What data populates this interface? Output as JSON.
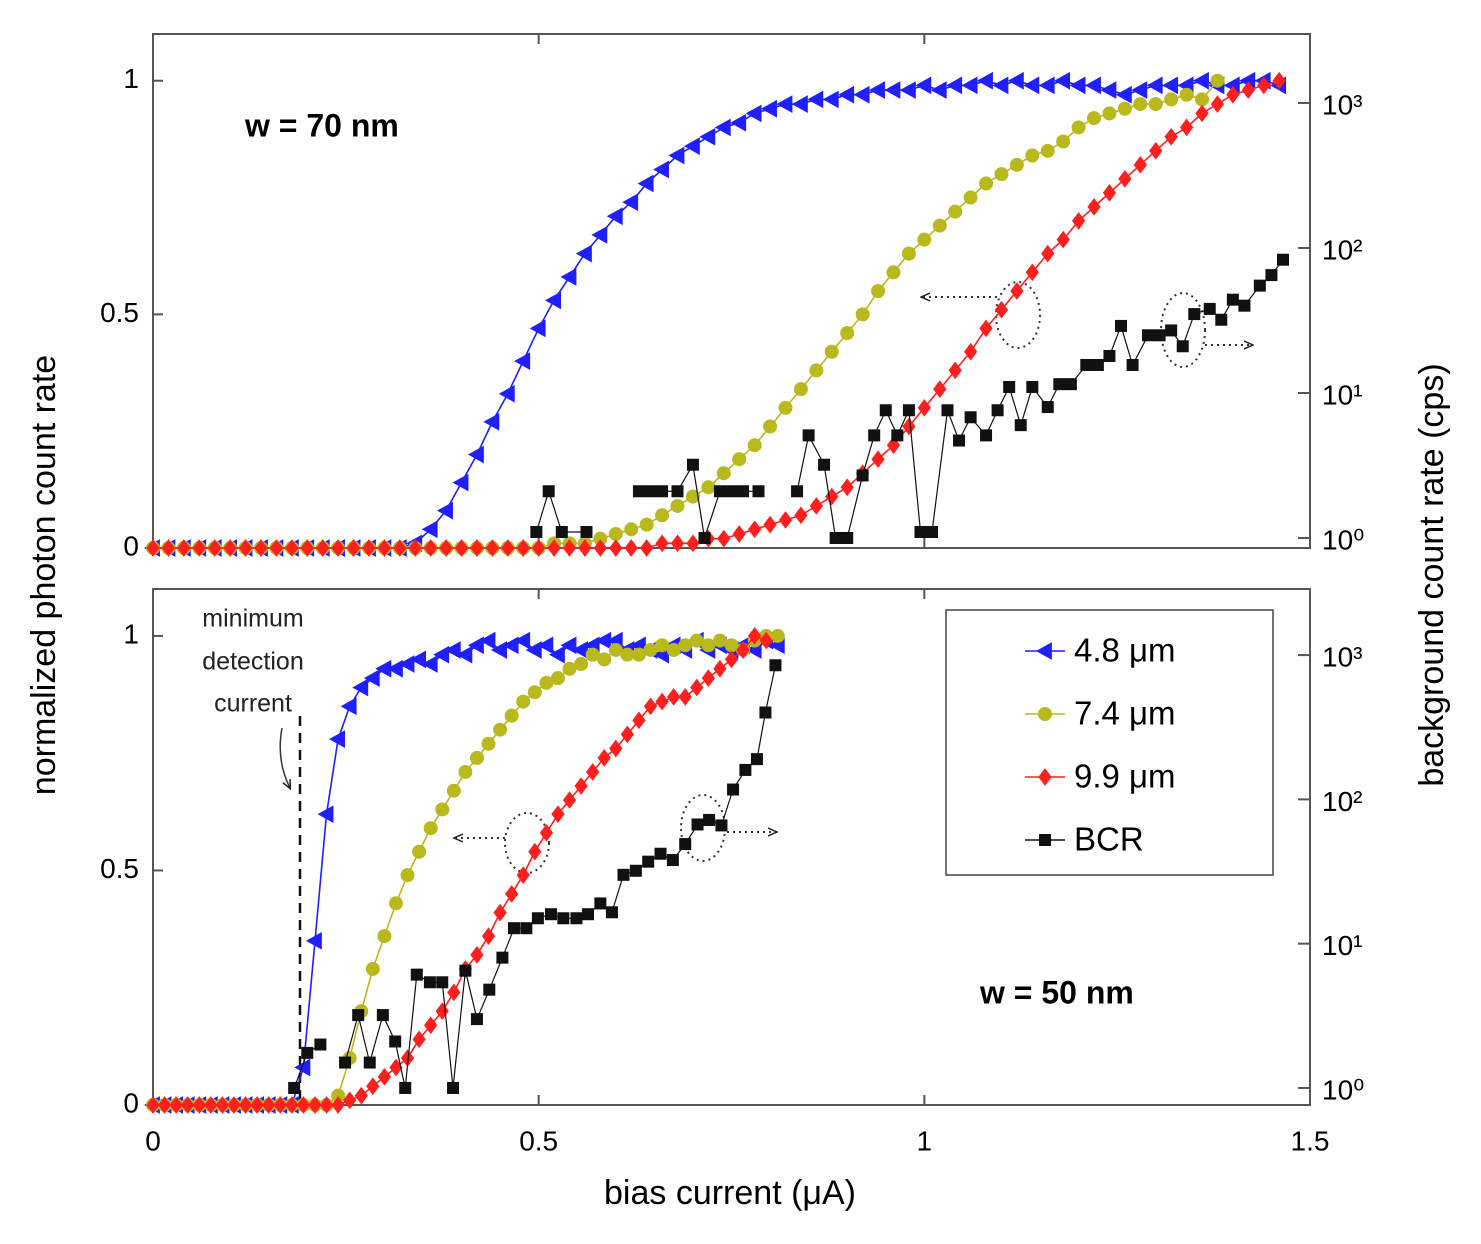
{
  "figure": {
    "xlabel": "bias current (μA)",
    "ylabel": "normalized photon count rate",
    "y2label": "background count rate (cps)"
  },
  "chart_data": [
    {
      "type": "line",
      "xlim": [
        0,
        1.5
      ],
      "xticks": [
        0,
        0.5,
        1,
        1.5
      ],
      "xtick_labels": false,
      "ylim": [
        0,
        1.1
      ],
      "yticks": [
        0,
        0.5,
        1
      ],
      "y2lim": [
        0.853,
        2990
      ],
      "y2log": true,
      "y2ticks": [
        {
          "value": 1,
          "label": "10⁰"
        },
        {
          "value": 10,
          "label": "10¹"
        },
        {
          "value": 100,
          "label": "10²"
        },
        {
          "value": 1000,
          "label": "10³"
        }
      ],
      "annotations": [
        "w = 70 nm"
      ],
      "x": [
        0,
        0.02,
        0.04,
        0.06,
        0.08,
        0.1,
        0.12,
        0.14,
        0.16,
        0.18,
        0.2,
        0.22,
        0.24,
        0.26,
        0.28,
        0.3,
        0.32,
        0.34,
        0.36,
        0.38,
        0.4,
        0.42,
        0.44,
        0.46,
        0.48,
        0.5,
        0.52,
        0.54,
        0.56,
        0.58,
        0.6,
        0.62,
        0.64,
        0.66,
        0.68,
        0.7,
        0.72,
        0.74,
        0.76,
        0.78,
        0.8,
        0.82,
        0.84,
        0.86,
        0.88,
        0.9,
        0.92,
        0.94,
        0.96,
        0.98,
        1,
        1.02,
        1.04,
        1.06,
        1.08,
        1.1,
        1.12,
        1.14,
        1.16,
        1.18,
        1.2,
        1.22,
        1.24,
        1.26,
        1.28,
        1.3,
        1.32,
        1.34,
        1.36,
        1.38,
        1.4,
        1.42,
        1.44,
        1.46
      ],
      "series": [
        {
          "name": "4.8 μm",
          "color": "#1f1fff",
          "marker": "triangle-left",
          "values": [
            0,
            0,
            0,
            0,
            0,
            0,
            0,
            0,
            0,
            0,
            0,
            0,
            0,
            0,
            0,
            0,
            0,
            0.01,
            0.04,
            0.08,
            0.14,
            0.2,
            0.27,
            0.33,
            0.4,
            0.47,
            0.53,
            0.58,
            0.63,
            0.67,
            0.71,
            0.74,
            0.78,
            0.81,
            0.84,
            0.86,
            0.88,
            0.9,
            0.91,
            0.93,
            0.94,
            0.95,
            0.95,
            0.96,
            0.96,
            0.97,
            0.97,
            0.98,
            0.98,
            0.98,
            0.99,
            0.98,
            0.99,
            0.99,
            1.0,
            0.99,
            1.0,
            0.99,
            0.99,
            1.0,
            0.99,
            0.99,
            0.98,
            0.97,
            0.98,
            0.99,
            0.99,
            0.99,
            1.0,
            0.99,
            0.99,
            1.0,
            1.0,
            0.99
          ]
        },
        {
          "name": "7.4 μm",
          "color": "#b9b81c",
          "marker": "circle",
          "values": [
            0,
            0,
            0,
            0,
            0,
            0,
            0,
            0,
            0,
            0,
            0,
            0,
            0,
            0,
            0,
            0,
            0,
            0,
            0,
            0,
            0,
            0,
            0,
            0,
            0,
            0,
            0.01,
            0.01,
            0.01,
            0.02,
            0.03,
            0.04,
            0.05,
            0.07,
            0.09,
            0.11,
            0.13,
            0.16,
            0.19,
            0.22,
            0.26,
            0.3,
            0.34,
            0.38,
            0.42,
            0.46,
            0.5,
            0.55,
            0.59,
            0.63,
            0.66,
            0.69,
            0.72,
            0.75,
            0.78,
            0.8,
            0.82,
            0.84,
            0.85,
            0.87,
            0.9,
            0.92,
            0.93,
            0.94,
            0.95,
            0.95,
            0.96,
            0.97,
            0.96,
            1.0,
            null,
            null,
            null,
            null
          ]
        },
        {
          "name": "9.9 μm",
          "color": "#ff1f1f",
          "marker": "diamond",
          "values": [
            0,
            0,
            0,
            0,
            0,
            0,
            0,
            0,
            0,
            0,
            0,
            0,
            0,
            0,
            0,
            0,
            0,
            0,
            0,
            0,
            0,
            0,
            0,
            0,
            0,
            0,
            0,
            0,
            0,
            0,
            0,
            0,
            0,
            0.01,
            0.01,
            0.01,
            0.02,
            0.02,
            0.03,
            0.04,
            0.05,
            0.06,
            0.07,
            0.09,
            0.11,
            0.13,
            0.16,
            0.19,
            0.22,
            0.26,
            0.3,
            0.34,
            0.38,
            0.42,
            0.47,
            0.51,
            0.55,
            0.59,
            0.63,
            0.66,
            0.7,
            0.73,
            0.76,
            0.79,
            0.82,
            0.85,
            0.88,
            0.9,
            0.93,
            0.95,
            0.97,
            0.98,
            0.99,
            1.0
          ]
        },
        {
          "name": "BCR",
          "color": "#111111",
          "marker": "square",
          "axis": "y2",
          "x": [
            0.497,
            0.513,
            0.53,
            0.562,
            0.595,
            0.63,
            0.645,
            0.66,
            0.68,
            0.7,
            0.715,
            0.735,
            0.75,
            0.765,
            0.785,
            0.81,
            0.835,
            0.85,
            0.87,
            0.885,
            0.9,
            0.92,
            0.935,
            0.95,
            0.965,
            0.98,
            0.995,
            1.01,
            1.03,
            1.045,
            1.06,
            1.08,
            1.095,
            1.11,
            1.125,
            1.14,
            1.16,
            1.175,
            1.19,
            1.21,
            1.225,
            1.24,
            1.255,
            1.27,
            1.29,
            1.305,
            1.32,
            1.335,
            1.35,
            1.37,
            1.385,
            1.4,
            1.415,
            1.435,
            1.45,
            1.465
          ],
          "values": [
            1.1,
            2.1,
            1.1,
            1.1,
            null,
            2.1,
            2.1,
            2.1,
            2.1,
            3.2,
            1.0,
            2.1,
            2.1,
            2.1,
            2.1,
            null,
            2.1,
            5.1,
            3.2,
            1.0,
            1.0,
            2.7,
            5.1,
            7.6,
            5.1,
            7.6,
            1.1,
            1.1,
            7.6,
            4.7,
            6.8,
            5.1,
            7.6,
            11,
            6,
            11,
            8,
            11.5,
            11.5,
            15.6,
            15.6,
            18,
            29,
            15.6,
            25,
            25,
            27,
            21,
            35,
            38,
            32,
            44,
            40,
            55,
            65,
            83
          ]
        }
      ]
    },
    {
      "type": "line",
      "xlim": [
        0,
        1.5
      ],
      "xticks": [
        0,
        0.5,
        1,
        1.5
      ],
      "ylim": [
        0,
        1.1
      ],
      "yticks": [
        0,
        0.5,
        1
      ],
      "y2lim": [
        0.762,
        2870
      ],
      "y2log": true,
      "y2ticks": [
        {
          "value": 1,
          "label": "10⁰"
        },
        {
          "value": 10,
          "label": "10¹"
        },
        {
          "value": 100,
          "label": "10²"
        },
        {
          "value": 1000,
          "label": "10³"
        }
      ],
      "legend": "upper right",
      "annotations": [
        "w = 50 nm",
        "minimum",
        "detection",
        "current"
      ],
      "x": [
        0,
        0.015,
        0.03,
        0.045,
        0.06,
        0.075,
        0.09,
        0.105,
        0.12,
        0.135,
        0.15,
        0.165,
        0.18,
        0.195,
        0.21,
        0.225,
        0.24,
        0.255,
        0.27,
        0.285,
        0.3,
        0.315,
        0.33,
        0.345,
        0.36,
        0.375,
        0.39,
        0.405,
        0.42,
        0.435,
        0.45,
        0.465,
        0.48,
        0.495,
        0.51,
        0.525,
        0.54,
        0.555,
        0.57,
        0.585,
        0.6,
        0.615,
        0.63,
        0.645,
        0.66,
        0.675,
        0.69,
        0.705,
        0.72,
        0.735,
        0.75,
        0.765,
        0.78,
        0.795,
        0.81
      ],
      "series": [
        {
          "name": "4.8 μm",
          "color": "#1f1fff",
          "marker": "triangle-left",
          "values": [
            0,
            0,
            0,
            0,
            0,
            0,
            0,
            0,
            0,
            0,
            0,
            0,
            0,
            0.08,
            0.35,
            0.62,
            0.78,
            0.85,
            0.89,
            0.91,
            0.93,
            0.93,
            0.94,
            0.95,
            0.94,
            0.96,
            0.97,
            0.96,
            0.98,
            0.99,
            0.97,
            0.98,
            0.99,
            0.97,
            0.98,
            0.96,
            0.98,
            0.97,
            0.98,
            0.99,
            0.99,
            0.97,
            0.98,
            0.97,
            0.96,
            0.98,
            0.97,
            0.99,
            0.97,
            0.98,
            0.97,
            0.98,
            0.97,
            0.99,
            0.98
          ]
        },
        {
          "name": "7.4 μm",
          "color": "#b9b81c",
          "marker": "circle",
          "values": [
            0,
            0,
            0,
            0,
            0,
            0,
            0,
            0,
            0,
            0,
            0,
            0,
            0,
            0,
            0,
            0,
            0.02,
            0.1,
            0.2,
            0.29,
            0.36,
            0.43,
            0.49,
            0.54,
            0.59,
            0.63,
            0.67,
            0.71,
            0.74,
            0.77,
            0.8,
            0.83,
            0.86,
            0.88,
            0.9,
            0.91,
            0.93,
            0.94,
            0.96,
            0.95,
            0.97,
            0.96,
            0.96,
            0.97,
            0.98,
            0.97,
            0.98,
            0.99,
            0.98,
            0.99,
            0.98,
            0.97,
            0.99,
            1.0,
            1.0
          ]
        },
        {
          "name": "9.9 μm",
          "color": "#ff1f1f",
          "marker": "diamond",
          "values": [
            0,
            0,
            0,
            0,
            0,
            0,
            0,
            0,
            0,
            0,
            0,
            0,
            0,
            0,
            0,
            0,
            0,
            0.01,
            0.02,
            0.04,
            0.06,
            0.08,
            0.1,
            0.14,
            0.17,
            0.2,
            0.24,
            0.29,
            0.32,
            0.36,
            0.41,
            0.45,
            0.49,
            0.54,
            0.58,
            0.62,
            0.65,
            0.68,
            0.71,
            0.74,
            0.76,
            0.79,
            0.82,
            0.85,
            0.86,
            0.87,
            0.87,
            0.89,
            0.91,
            0.93,
            0.95,
            0.97,
            1.0,
            0.99,
            null
          ]
        },
        {
          "name": "BCR",
          "color": "#111111",
          "marker": "square",
          "axis": "y2",
          "x": [
            0.183,
            0.2,
            0.217,
            0.232,
            0.249,
            0.266,
            0.281,
            0.298,
            0.314,
            0.327,
            0.342,
            0.359,
            0.375,
            0.389,
            0.405,
            0.42,
            0.436,
            0.453,
            0.468,
            0.484,
            0.499,
            0.516,
            0.532,
            0.549,
            0.564,
            0.58,
            0.595,
            0.61,
            0.626,
            0.642,
            0.658,
            0.674,
            0.69,
            0.706,
            0.721,
            0.737,
            0.752,
            0.768,
            0.783,
            0.794,
            0.807
          ],
          "values": [
            1.0,
            1.75,
            2.0,
            null,
            1.5,
            3.2,
            1.5,
            3.2,
            2.1,
            1.0,
            6.1,
            5.4,
            5.4,
            1.0,
            6.5,
            3.0,
            4.8,
            8.0,
            12.8,
            12.8,
            15,
            16,
            15,
            15,
            16,
            19,
            16.5,
            30,
            32,
            37,
            42,
            38,
            49,
            67,
            72,
            66,
            117,
            160,
            190,
            400,
            850
          ]
        }
      ]
    }
  ]
}
